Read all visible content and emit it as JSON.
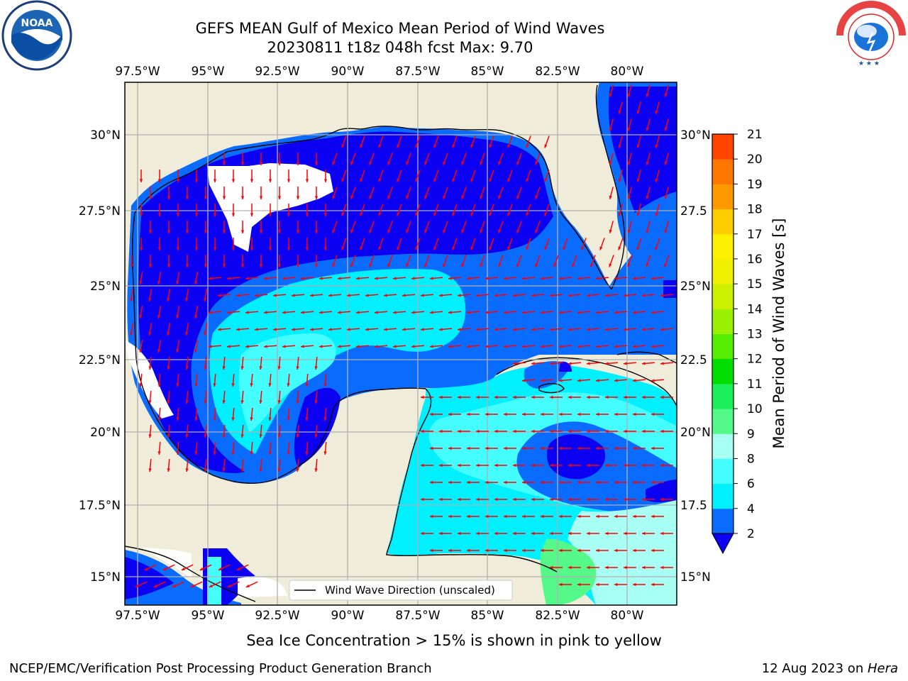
{
  "header": {
    "title_line1": "GEFS MEAN Gulf of Mexico Mean Period of Wind Waves",
    "title_line2": "20230811 t18z 048h fcst   Max: 9.70"
  },
  "map": {
    "lon_ticks": [
      "97.5°W",
      "95°W",
      "92.5°W",
      "90°W",
      "87.5°W",
      "85°W",
      "82.5°W",
      "80°W"
    ],
    "lat_ticks_left": [
      "30°N",
      "27.5°N",
      "25°N",
      "22.5°N",
      "20°N",
      "17.5°N",
      "15°N"
    ],
    "lat_ticks_right": [
      "30°N",
      "27.5",
      "25°N",
      "22.5",
      "20°N",
      "17.5",
      "15°N"
    ],
    "legend_label": "Wind Wave Direction (unscaled)",
    "colors": {
      "land": "#efedd9",
      "ocean_deep": "#0b00f2",
      "arrow": "#ff0000",
      "grid": "#b0b0b0"
    }
  },
  "colorbar": {
    "label": "Mean Period of Wind Waves [s]",
    "ticks": [
      "2",
      "4",
      "6",
      "8",
      "9",
      "10",
      "11",
      "12",
      "13",
      "14",
      "15",
      "16",
      "17",
      "18",
      "19",
      "20",
      "21"
    ],
    "colors": [
      "#0a6cff",
      "#00f0ff",
      "#44fdff",
      "#a8fff4",
      "#54f98a",
      "#1af05a",
      "#00dd00",
      "#55ee00",
      "#99f000",
      "#ccf000",
      "#f0f000",
      "#fff000",
      "#ffcc00",
      "#ff9900",
      "#ff7700",
      "#ff4400",
      "#ff0000"
    ],
    "under_color": "#0b00f2"
  },
  "footer": {
    "note": "Sea Ice Concentration > 15% is shown in pink to yellow",
    "credit": "NCEP/EMC/Verification Post Processing Product Generation Branch",
    "date": "12 Aug 2023 on ",
    "host": "Hera"
  }
}
